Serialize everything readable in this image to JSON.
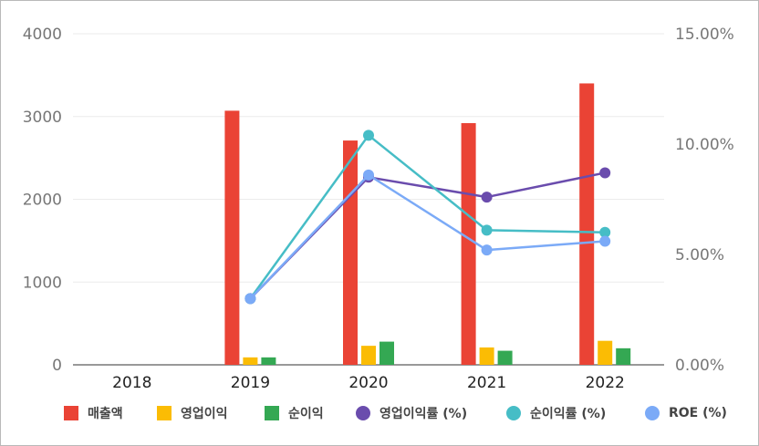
{
  "chart_data": {
    "type": "bar",
    "categories": [
      "2018",
      "2019",
      "2020",
      "2021",
      "2022"
    ],
    "left_axis": {
      "ticks": [
        "0",
        "1000",
        "2000",
        "3000",
        "4000"
      ],
      "range": [
        0,
        4000
      ]
    },
    "right_axis": {
      "ticks": [
        "0.00%",
        "5.00%",
        "10.00%",
        "15.00%"
      ],
      "range": [
        0,
        15
      ]
    },
    "grid": true,
    "legend_position": "bottom",
    "bar_series": [
      {
        "name": "매출액",
        "color": "#ea4335",
        "values": [
          null,
          3070,
          2710,
          2920,
          3400
        ]
      },
      {
        "name": "영업이익",
        "color": "#fbbc04",
        "values": [
          null,
          90,
          230,
          210,
          290
        ]
      },
      {
        "name": "순이익",
        "color": "#34a853",
        "values": [
          null,
          90,
          280,
          170,
          200
        ]
      }
    ],
    "line_series": [
      {
        "name": "영업이익률 (%)",
        "color": "#6a4cad",
        "values": [
          null,
          3.0,
          8.5,
          7.6,
          8.7
        ]
      },
      {
        "name": "순이익률 (%)",
        "color": "#46bdc6",
        "values": [
          null,
          3.0,
          10.4,
          6.1,
          6.0
        ]
      },
      {
        "name": "ROE (%)",
        "color": "#7baaf7",
        "values": [
          null,
          3.0,
          8.6,
          5.2,
          5.6
        ]
      }
    ]
  }
}
